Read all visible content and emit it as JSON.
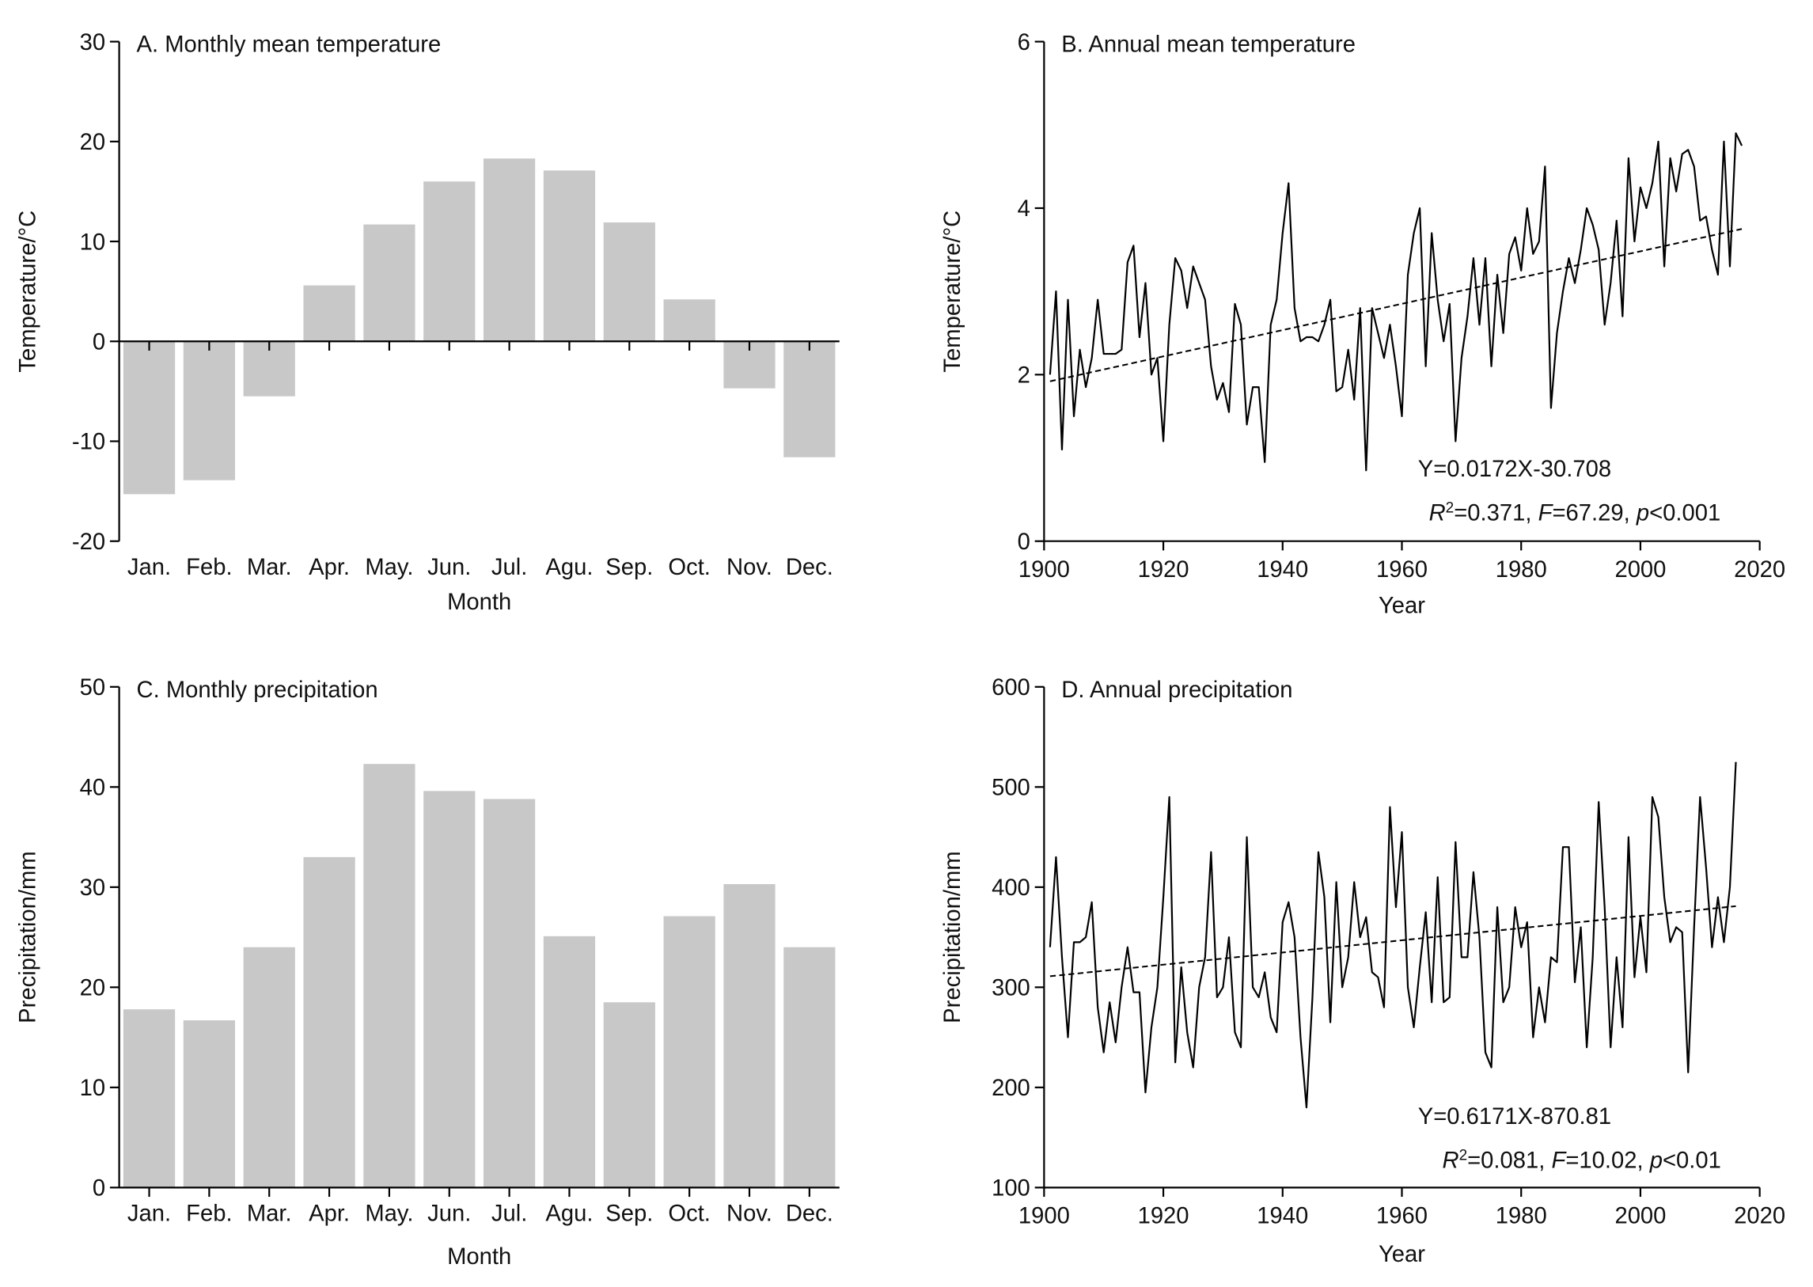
{
  "chart_data": [
    {
      "type": "bar",
      "title": "A. Monthly mean temperature",
      "xlabel": "Month",
      "ylabel": "Temperature/°C",
      "categories": [
        "Jan.",
        "Feb.",
        "Mar.",
        "Apr.",
        "May.",
        "Jun.",
        "Jul.",
        "Agu.",
        "Sep.",
        "Oct.",
        "Nov.",
        "Dec."
      ],
      "values": [
        -15.3,
        -13.9,
        -5.5,
        5.6,
        11.7,
        16.0,
        18.3,
        17.1,
        11.9,
        4.2,
        -4.7,
        -11.6
      ],
      "color": "#c8c8c8",
      "ylim": [
        -20,
        30
      ],
      "yticks": [
        -20,
        -10,
        0,
        10,
        20,
        30
      ]
    },
    {
      "type": "line",
      "title": "B. Annual mean temperature",
      "xlabel": "Year",
      "ylabel": "Temperature/°C",
      "xlim": [
        1900,
        2020
      ],
      "xticks": [
        1900,
        1920,
        1940,
        1960,
        1980,
        2000,
        2020
      ],
      "ylim": [
        0,
        6
      ],
      "yticks": [
        0,
        2,
        4,
        6
      ],
      "series": [
        {
          "color": "#000000",
          "x": [
            1901,
            1902,
            1903,
            1904,
            1905,
            1906,
            1907,
            1908,
            1909,
            1910,
            1911,
            1912,
            1913,
            1914,
            1915,
            1916,
            1917,
            1918,
            1919,
            1920,
            1921,
            1922,
            1923,
            1924,
            1925,
            1926,
            1927,
            1928,
            1929,
            1930,
            1931,
            1932,
            1933,
            1934,
            1935,
            1936,
            1937,
            1938,
            1939,
            1940,
            1941,
            1942,
            1943,
            1944,
            1945,
            1946,
            1947,
            1948,
            1949,
            1950,
            1951,
            1952,
            1953,
            1954,
            1955,
            1956,
            1957,
            1958,
            1959,
            1960,
            1961,
            1962,
            1963,
            1964,
            1965,
            1966,
            1967,
            1968,
            1969,
            1970,
            1971,
            1972,
            1973,
            1974,
            1975,
            1976,
            1977,
            1978,
            1979,
            1980,
            1981,
            1982,
            1983,
            1984,
            1985,
            1986,
            1987,
            1988,
            1989,
            1990,
            1991,
            1992,
            1993,
            1994,
            1995,
            1996,
            1997,
            1998,
            1999,
            2000,
            2001,
            2002,
            2003,
            2004,
            2005,
            2006,
            2007,
            2008,
            2009,
            2010,
            2011,
            2012,
            2013,
            2014,
            2015,
            2016,
            2017
          ],
          "values": [
            2.0,
            3.0,
            1.1,
            2.9,
            1.5,
            2.3,
            1.85,
            2.2,
            2.9,
            2.25,
            2.25,
            2.25,
            2.3,
            3.35,
            3.55,
            2.45,
            3.1,
            2.0,
            2.2,
            1.2,
            2.6,
            3.4,
            3.25,
            2.8,
            3.3,
            3.1,
            2.9,
            2.1,
            1.7,
            1.9,
            1.55,
            2.85,
            2.6,
            1.4,
            1.85,
            1.85,
            0.95,
            2.6,
            2.9,
            3.7,
            4.3,
            2.8,
            2.4,
            2.45,
            2.45,
            2.4,
            2.6,
            2.9,
            1.8,
            1.85,
            2.3,
            1.7,
            2.8,
            0.85,
            2.8,
            2.5,
            2.2,
            2.6,
            2.1,
            1.5,
            3.2,
            3.7,
            4.0,
            2.1,
            3.7,
            2.9,
            2.4,
            2.85,
            1.2,
            2.2,
            2.7,
            3.4,
            2.6,
            3.4,
            2.1,
            3.2,
            2.5,
            3.45,
            3.65,
            3.25,
            4.0,
            3.45,
            3.6,
            4.5,
            1.6,
            2.5,
            3.0,
            3.4,
            3.1,
            3.5,
            4.0,
            3.8,
            3.5,
            2.6,
            3.1,
            3.85,
            2.7,
            4.6,
            3.6,
            4.25,
            4.0,
            4.3,
            4.8,
            3.3,
            4.6,
            4.2,
            4.65,
            4.7,
            4.5,
            3.85,
            3.9,
            3.5,
            3.2,
            4.8,
            3.3,
            4.9,
            4.75
          ]
        },
        {
          "color": "#000000",
          "dashed": true,
          "x": [
            1901,
            2017
          ],
          "values": [
            1.92,
            3.75
          ]
        }
      ],
      "annotations": [
        [
          {
            "text": "Y=0.0172X-30.708"
          }
        ],
        [
          {
            "text": "R",
            "style": "italic"
          },
          {
            "text": "2",
            "style": "sup"
          },
          {
            "text": "=0.371, "
          },
          {
            "text": "F",
            "style": "italic"
          },
          {
            "text": "=67.29, "
          },
          {
            "text": "p",
            "style": "italic"
          },
          {
            "text": "<0.001"
          }
        ]
      ]
    },
    {
      "type": "bar",
      "title": "C. Monthly precipitation",
      "xlabel": "Month",
      "ylabel": "Precipitation/mm",
      "categories": [
        "Jan.",
        "Feb.",
        "Mar.",
        "Apr.",
        "May.",
        "Jun.",
        "Jul.",
        "Agu.",
        "Sep.",
        "Oct.",
        "Nov.",
        "Dec."
      ],
      "values": [
        17.8,
        16.7,
        24.0,
        33.0,
        42.3,
        39.6,
        38.8,
        25.1,
        18.5,
        27.1,
        30.3,
        24.0
      ],
      "color": "#c8c8c8",
      "ylim": [
        0,
        50
      ],
      "yticks": [
        0,
        10,
        20,
        30,
        40,
        50
      ]
    },
    {
      "type": "line",
      "title": "D. Annual precipitation",
      "xlabel": "Year",
      "ylabel": "Precipitation/mm",
      "xlim": [
        1900,
        2020
      ],
      "xticks": [
        1900,
        1920,
        1940,
        1960,
        1980,
        2000,
        2020
      ],
      "ylim": [
        100,
        600
      ],
      "yticks": [
        100,
        200,
        300,
        400,
        500,
        600
      ],
      "series": [
        {
          "color": "#000000",
          "x": [
            1901,
            1902,
            1903,
            1904,
            1905,
            1906,
            1907,
            1908,
            1909,
            1910,
            1911,
            1912,
            1913,
            1914,
            1915,
            1916,
            1917,
            1918,
            1919,
            1920,
            1921,
            1922,
            1923,
            1924,
            1925,
            1926,
            1927,
            1928,
            1929,
            1930,
            1931,
            1932,
            1933,
            1934,
            1935,
            1936,
            1937,
            1938,
            1939,
            1940,
            1941,
            1942,
            1943,
            1944,
            1945,
            1946,
            1947,
            1948,
            1949,
            1950,
            1951,
            1952,
            1953,
            1954,
            1955,
            1956,
            1957,
            1958,
            1959,
            1960,
            1961,
            1962,
            1963,
            1964,
            1965,
            1966,
            1967,
            1968,
            1969,
            1970,
            1971,
            1972,
            1973,
            1974,
            1975,
            1976,
            1977,
            1978,
            1979,
            1980,
            1981,
            1982,
            1983,
            1984,
            1985,
            1986,
            1987,
            1988,
            1989,
            1990,
            1991,
            1992,
            1993,
            1994,
            1995,
            1996,
            1997,
            1998,
            1999,
            2000,
            2001,
            2002,
            2003,
            2004,
            2005,
            2006,
            2007,
            2008,
            2009,
            2010,
            2011,
            2012,
            2013,
            2014,
            2015,
            2016
          ],
          "values": [
            340,
            430,
            330,
            250,
            345,
            345,
            350,
            385,
            280,
            235,
            285,
            245,
            300,
            340,
            295,
            295,
            195,
            260,
            300,
            390,
            490,
            225,
            320,
            255,
            220,
            300,
            330,
            435,
            290,
            300,
            350,
            255,
            240,
            450,
            300,
            290,
            315,
            270,
            255,
            365,
            385,
            350,
            250,
            180,
            290,
            435,
            390,
            265,
            405,
            300,
            330,
            405,
            350,
            370,
            315,
            310,
            280,
            480,
            380,
            455,
            300,
            260,
            320,
            375,
            285,
            410,
            285,
            290,
            445,
            330,
            330,
            415,
            350,
            235,
            220,
            380,
            285,
            300,
            380,
            340,
            365,
            250,
            300,
            265,
            330,
            325,
            440,
            440,
            305,
            360,
            240,
            330,
            485,
            380,
            240,
            330,
            260,
            450,
            310,
            370,
            315,
            490,
            470,
            390,
            345,
            360,
            355,
            215,
            360,
            490,
            420,
            340,
            390,
            345,
            400,
            525
          ]
        },
        {
          "color": "#000000",
          "dashed": true,
          "x": [
            1901,
            2016
          ],
          "values": [
            311,
            381
          ]
        }
      ],
      "annotations": [
        [
          {
            "text": "Y=0.6171X-870.81"
          }
        ],
        [
          {
            "text": "R",
            "style": "italic"
          },
          {
            "text": "2",
            "style": "sup"
          },
          {
            "text": "=0.081, "
          },
          {
            "text": "F",
            "style": "italic"
          },
          {
            "text": "=10.02, "
          },
          {
            "text": "p",
            "style": "italic"
          },
          {
            "text": "<0.01"
          }
        ]
      ]
    }
  ]
}
